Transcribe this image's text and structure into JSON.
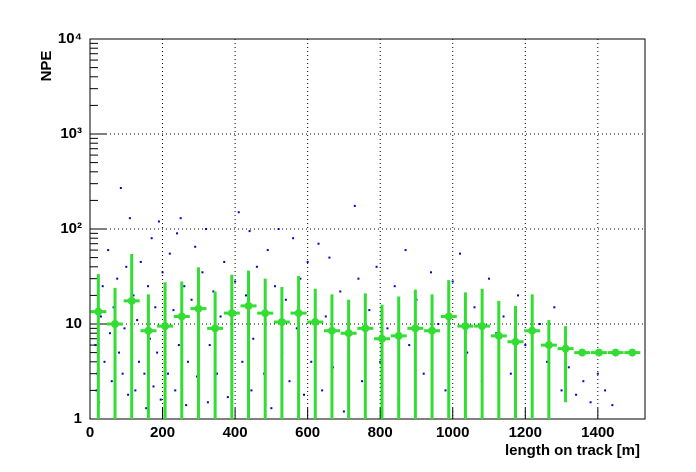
{
  "chart_data": {
    "type": "scatter",
    "x_label": "length on track [m]",
    "y_label": "NPE",
    "xlim": [
      0,
      1530
    ],
    "ylim": [
      1,
      10000
    ],
    "log_y": true,
    "grid": true,
    "xticks": [
      0,
      200,
      400,
      600,
      800,
      1000,
      1200,
      1400
    ],
    "yticks": [
      1,
      10,
      {
        "value": 100,
        "label": "10²"
      },
      {
        "value": 1000,
        "label": "10³"
      },
      {
        "value": 10000,
        "label": "10⁴"
      }
    ],
    "series": [
      {
        "kind": "points",
        "color": "#0000cc",
        "x": [
          20,
          25,
          15,
          30,
          35,
          40,
          18,
          50,
          55,
          60,
          65,
          70,
          75,
          80,
          85,
          90,
          95,
          100,
          105,
          110,
          115,
          120,
          125,
          130,
          135,
          140,
          150,
          155,
          160,
          165,
          170,
          175,
          180,
          185,
          190,
          195,
          200,
          210,
          215,
          220,
          230,
          235,
          240,
          245,
          250,
          260,
          265,
          270,
          280,
          290,
          295,
          300,
          310,
          320,
          325,
          330,
          340,
          350,
          360,
          370,
          380,
          390,
          400,
          410,
          420,
          430,
          440,
          445,
          450,
          460,
          470,
          480,
          490,
          500,
          510,
          520,
          530,
          540,
          550,
          560,
          570,
          580,
          590,
          600,
          610,
          620,
          630,
          640,
          650,
          660,
          670,
          690,
          700,
          720,
          730,
          740,
          750,
          770,
          790,
          800,
          820,
          840,
          850,
          870,
          880,
          900,
          920,
          940,
          960,
          980,
          1000,
          1020,
          1040,
          1060,
          1080,
          1100,
          1120,
          1140,
          1160,
          1180,
          1200,
          1220,
          1240,
          1260,
          1280,
          1300,
          1320,
          1340,
          1360,
          1380,
          1400,
          1420,
          1440
        ],
        "values": [
          3,
          1.5,
          6,
          12,
          25,
          4,
          2,
          60,
          8,
          2.5,
          15,
          1.2,
          30,
          5,
          270,
          3,
          9,
          40,
          1.8,
          130,
          6,
          20,
          2,
          11,
          4,
          45,
          3,
          1.3,
          25,
          7,
          80,
          2.2,
          15,
          5,
          120,
          1.6,
          35,
          9,
          3,
          55,
          14,
          2,
          90,
          6,
          130,
          25,
          1.4,
          4,
          18,
          65,
          2.8,
          10,
          35,
          100,
          1.5,
          6,
          22,
          3,
          12,
          45,
          1.7,
          8,
          28,
          150,
          4,
          20,
          95,
          2,
          7,
          40,
          13,
          3,
          60,
          1.3,
          25,
          100,
          5,
          18,
          2.5,
          80,
          9,
          30,
          1.8,
          45,
          4,
          15,
          70,
          2,
          12,
          50,
          3.5,
          22,
          1.2,
          8,
          175,
          30,
          2.5,
          14,
          40,
          4,
          9,
          25,
          1.6,
          60,
          6,
          18,
          3,
          35,
          10,
          2,
          28,
          55,
          5,
          15,
          2.5,
          30,
          8,
          12,
          3,
          20,
          6,
          1.5,
          10,
          4,
          15,
          2,
          3.5,
          1.8,
          2.5,
          1.5,
          3,
          2,
          1.4
        ]
      },
      {
        "kind": "profile",
        "color": "#33dd33",
        "x": [
          23,
          69,
          115,
          161,
          207,
          253,
          299,
          345,
          391,
          437,
          483,
          529,
          575,
          621,
          667,
          713,
          759,
          805,
          851,
          897,
          943,
          989,
          1035,
          1081,
          1127,
          1173,
          1219,
          1265,
          1311,
          1357,
          1403,
          1449,
          1495
        ],
        "values": [
          13.5,
          10,
          17.5,
          8.5,
          9.5,
          12,
          14.5,
          9,
          13,
          15.5,
          13,
          10.5,
          13,
          10.5,
          8.5,
          8,
          9,
          7,
          7.5,
          9,
          8.5,
          12,
          9.5,
          9.5,
          7.5,
          6.5,
          8.5,
          6,
          5.5,
          5,
          5,
          5,
          5
        ],
        "errors": [
          20,
          14,
          37,
          12,
          18,
          16,
          25,
          13,
          20,
          21,
          17,
          14,
          19,
          13,
          12,
          10,
          12,
          9,
          12,
          14,
          12,
          17,
          12,
          14,
          10,
          9,
          12,
          5,
          4,
          0,
          0,
          0,
          0
        ]
      }
    ]
  }
}
